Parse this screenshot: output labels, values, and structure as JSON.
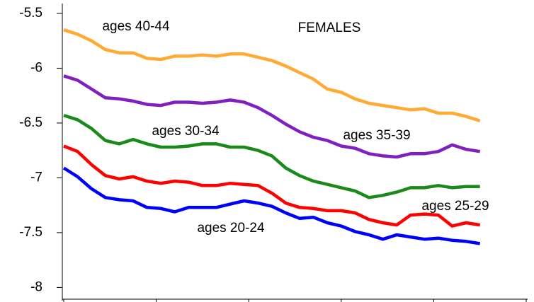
{
  "chart_data": {
    "type": "line",
    "title": "FEMALES",
    "x": [
      0,
      0.15,
      0.3,
      0.45,
      0.6,
      0.75,
      0.9,
      1.05,
      1.2,
      1.35,
      1.5,
      1.65,
      1.8,
      1.95,
      2.1,
      2.25,
      2.4,
      2.55,
      2.7,
      2.85,
      3,
      3.15,
      3.3,
      3.45,
      3.6,
      3.75,
      3.9,
      4.05,
      4.2,
      4.35,
      4.5
    ],
    "xlim": [
      0,
      5
    ],
    "xticks": [
      0,
      1,
      2,
      3,
      4,
      5
    ],
    "ylim": [
      -8.12,
      -5.41
    ],
    "yticks": [
      -5.5,
      -6,
      -6.5,
      -7,
      -7.5,
      -8
    ],
    "series": [
      {
        "name": "ages 40-44",
        "color": "#ffaa33",
        "values": [
          -5.65,
          -5.69,
          -5.75,
          -5.83,
          -5.86,
          -5.86,
          -5.91,
          -5.92,
          -5.89,
          -5.89,
          -5.88,
          -5.89,
          -5.87,
          -5.87,
          -5.9,
          -5.93,
          -5.98,
          -6.04,
          -6.1,
          -6.19,
          -6.22,
          -6.28,
          -6.32,
          -6.34,
          -6.36,
          -6.38,
          -6.37,
          -6.41,
          -6.41,
          -6.44,
          -6.48
        ]
      },
      {
        "name": "ages 35-39",
        "color": "#8020c0",
        "values": [
          -6.07,
          -6.11,
          -6.19,
          -6.27,
          -6.28,
          -6.3,
          -6.33,
          -6.34,
          -6.31,
          -6.31,
          -6.32,
          -6.31,
          -6.29,
          -6.31,
          -6.36,
          -6.43,
          -6.51,
          -6.58,
          -6.63,
          -6.66,
          -6.71,
          -6.73,
          -6.78,
          -6.8,
          -6.81,
          -6.78,
          -6.78,
          -6.76,
          -6.7,
          -6.74,
          -6.76
        ]
      },
      {
        "name": "ages 30-34",
        "color": "#1a8a1a",
        "values": [
          -6.43,
          -6.47,
          -6.55,
          -6.66,
          -6.69,
          -6.65,
          -6.69,
          -6.72,
          -6.72,
          -6.71,
          -6.69,
          -6.69,
          -6.72,
          -6.72,
          -6.75,
          -6.8,
          -6.91,
          -6.98,
          -7.03,
          -7.06,
          -7.09,
          -7.12,
          -7.18,
          -7.16,
          -7.13,
          -7.09,
          -7.09,
          -7.07,
          -7.09,
          -7.08,
          -7.08
        ]
      },
      {
        "name": "ages 25-29",
        "color": "#ff0000",
        "values": [
          -6.71,
          -6.76,
          -6.88,
          -6.98,
          -7.01,
          -6.99,
          -7.03,
          -7.05,
          -7.03,
          -7.04,
          -7.07,
          -7.07,
          -7.05,
          -7.06,
          -7.07,
          -7.14,
          -7.23,
          -7.27,
          -7.28,
          -7.3,
          -7.3,
          -7.32,
          -7.38,
          -7.41,
          -7.43,
          -7.34,
          -7.33,
          -7.34,
          -7.44,
          -7.41,
          -7.43
        ]
      },
      {
        "name": "ages 20-24",
        "color": "#0000ff",
        "values": [
          -6.91,
          -6.99,
          -7.1,
          -7.18,
          -7.2,
          -7.21,
          -7.27,
          -7.28,
          -7.31,
          -7.27,
          -7.27,
          -7.27,
          -7.24,
          -7.21,
          -7.23,
          -7.26,
          -7.32,
          -7.37,
          -7.36,
          -7.41,
          -7.44,
          -7.49,
          -7.52,
          -7.56,
          -7.52,
          -7.54,
          -7.56,
          -7.55,
          -7.57,
          -7.58,
          -7.6
        ]
      }
    ]
  }
}
